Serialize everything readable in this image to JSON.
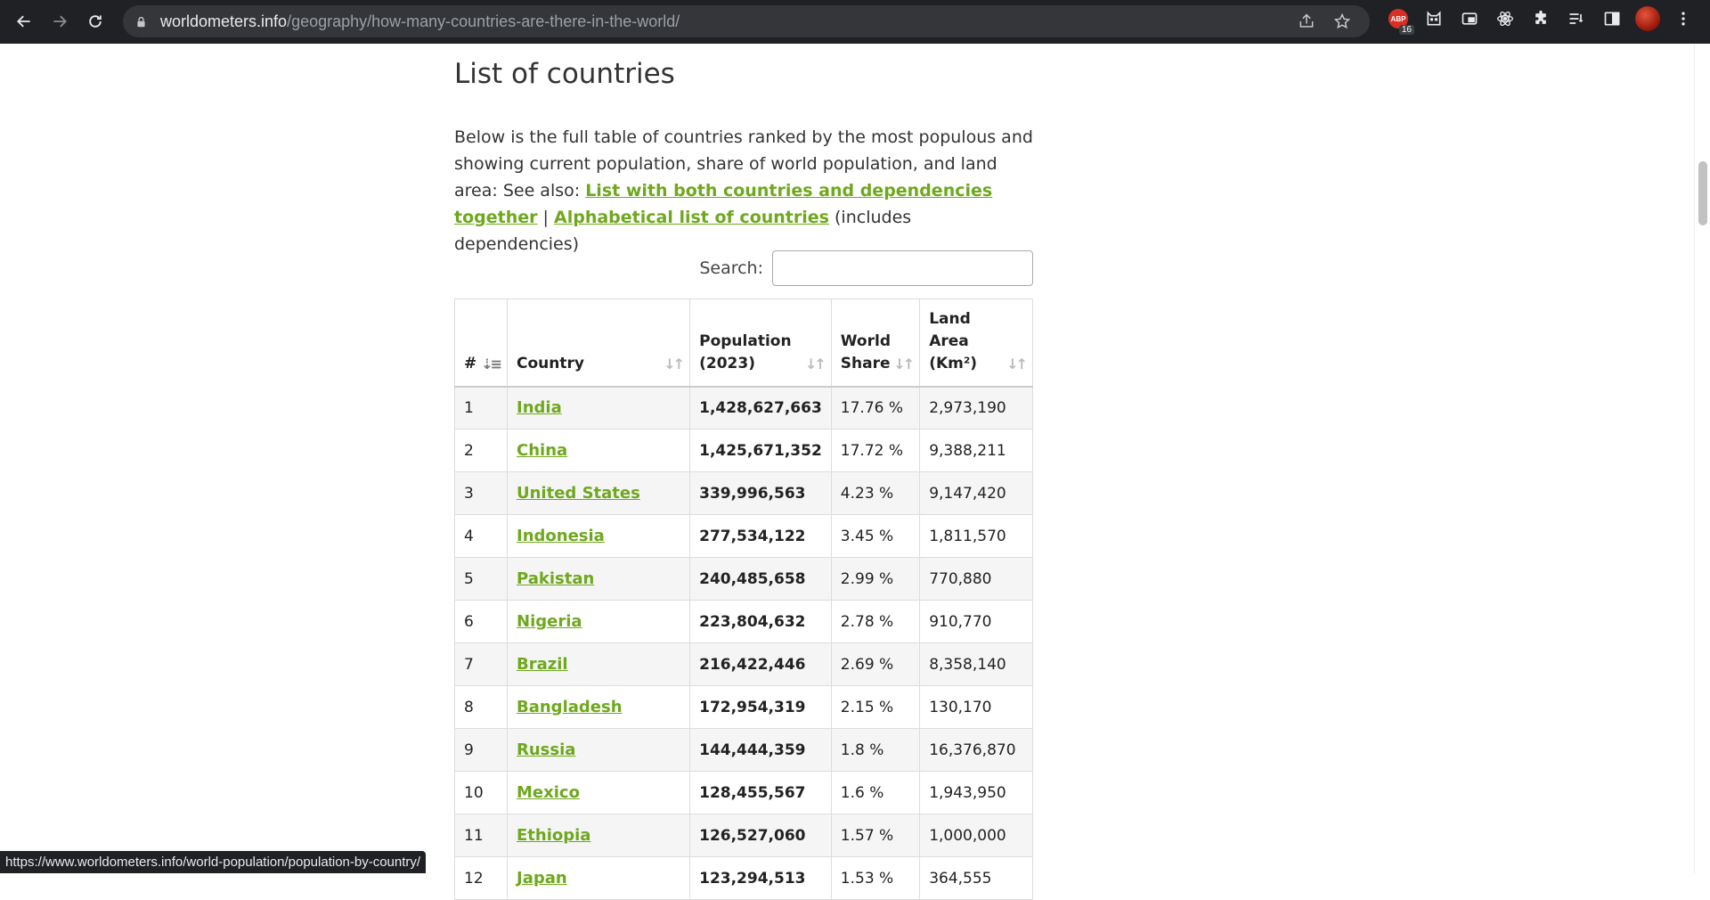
{
  "browser": {
    "url_host": "worldometers.info",
    "url_path": "/geography/how-many-countries-are-there-in-the-world/",
    "extension_badge": "16",
    "extension_label": "ABP",
    "status_url": "https://www.worldometers.info/world-population/population-by-country/"
  },
  "page": {
    "heading": "List of countries",
    "intro_text": "Below is the full table of countries ranked by the most populous and showing current population, share of world population, and land area:",
    "see_also_prefix": "See also: ",
    "link_both": "List with both countries and dependencies together",
    "separator": " |",
    "link_alpha": "Alphabetical list of countries",
    "includes_note": " (includes dependencies)",
    "link_color": "#6fa81e"
  },
  "search": {
    "label": "Search:",
    "value": ""
  },
  "table": {
    "headers": {
      "rank": "#",
      "country": "Country",
      "population": "Population (2023)",
      "share": "World Share",
      "area": "Land Area (Km²)"
    },
    "rows": [
      {
        "rank": "1",
        "country": "India",
        "population": "1,428,627,663",
        "share": "17.76 %",
        "area": "2,973,190"
      },
      {
        "rank": "2",
        "country": "China",
        "population": "1,425,671,352",
        "share": "17.72 %",
        "area": "9,388,211"
      },
      {
        "rank": "3",
        "country": "United States",
        "population": "339,996,563",
        "share": "4.23 %",
        "area": "9,147,420"
      },
      {
        "rank": "4",
        "country": "Indonesia",
        "population": "277,534,122",
        "share": "3.45 %",
        "area": "1,811,570"
      },
      {
        "rank": "5",
        "country": "Pakistan",
        "population": "240,485,658",
        "share": "2.99 %",
        "area": "770,880"
      },
      {
        "rank": "6",
        "country": "Nigeria",
        "population": "223,804,632",
        "share": "2.78 %",
        "area": "910,770"
      },
      {
        "rank": "7",
        "country": "Brazil",
        "population": "216,422,446",
        "share": "2.69 %",
        "area": "8,358,140"
      },
      {
        "rank": "8",
        "country": "Bangladesh",
        "population": "172,954,319",
        "share": "2.15 %",
        "area": "130,170"
      },
      {
        "rank": "9",
        "country": "Russia",
        "population": "144,444,359",
        "share": "1.8 %",
        "area": "16,376,870"
      },
      {
        "rank": "10",
        "country": "Mexico",
        "population": "128,455,567",
        "share": "1.6 %",
        "area": "1,943,950"
      },
      {
        "rank": "11",
        "country": "Ethiopia",
        "population": "126,527,060",
        "share": "1.57 %",
        "area": "1,000,000"
      },
      {
        "rank": "12",
        "country": "Japan",
        "population": "123,294,513",
        "share": "1.53 %",
        "area": "364,555"
      }
    ]
  }
}
